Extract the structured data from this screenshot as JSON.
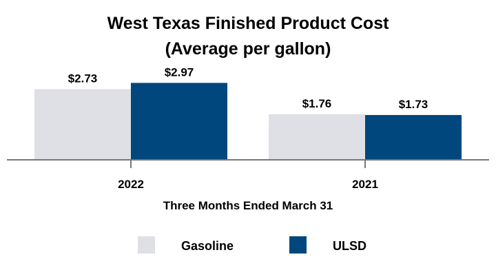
{
  "chart_data": {
    "type": "bar",
    "title": "West Texas Finished Product Cost",
    "subtitle": "(Average per gallon)",
    "xlabel": "Three Months Ended March 31",
    "ylabel": "",
    "categories": [
      "2022",
      "2021"
    ],
    "series": [
      {
        "name": "Gasoline",
        "values": [
          2.73,
          1.76
        ],
        "labels": [
          "$2.73",
          "$1.76"
        ],
        "color": "#dfe0e5"
      },
      {
        "name": "ULSD",
        "values": [
          2.97,
          1.73
        ],
        "labels": [
          "$2.97",
          "$1.73"
        ],
        "color": "#00477d"
      }
    ],
    "ylim": [
      0,
      3.5
    ],
    "grid": false,
    "legend_position": "bottom"
  }
}
